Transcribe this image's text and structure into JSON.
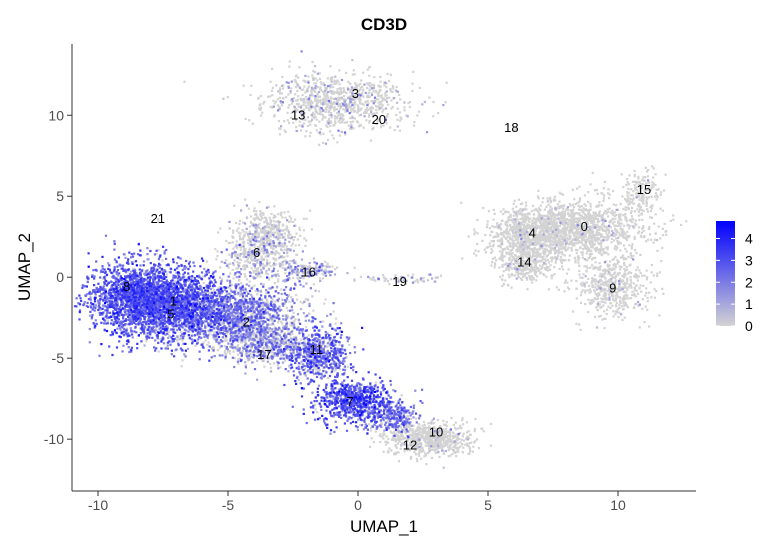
{
  "chart_data": {
    "type": "scatter",
    "title": "CD3D",
    "xlabel": "UMAP_1",
    "ylabel": "UMAP_2",
    "xlim": [
      -11,
      13
    ],
    "ylim": [
      -13.2,
      14.4
    ],
    "x_ticks": [
      -10,
      -5,
      0,
      5,
      10
    ],
    "y_ticks": [
      -10,
      -5,
      0,
      5,
      10
    ],
    "grid": false,
    "legend": {
      "placement": "right",
      "min": 0,
      "max": 4.8,
      "ticks": [
        0,
        1,
        2,
        3,
        4
      ],
      "color_low": "#d3d3d3",
      "color_high": "#0000ff"
    },
    "cluster_labels": [
      {
        "label": "0",
        "x": 8.7,
        "y": 3.1
      },
      {
        "label": "1",
        "x": -7.1,
        "y": -1.5
      },
      {
        "label": "2",
        "x": -4.3,
        "y": -2.8
      },
      {
        "label": "3",
        "x": -0.1,
        "y": 11.3
      },
      {
        "label": "4",
        "x": 6.7,
        "y": 2.7
      },
      {
        "label": "5",
        "x": -7.2,
        "y": -2.3
      },
      {
        "label": "6",
        "x": -3.9,
        "y": 1.5
      },
      {
        "label": "7",
        "x": -0.3,
        "y": -7.7
      },
      {
        "label": "8",
        "x": -8.9,
        "y": -0.6
      },
      {
        "label": "9",
        "x": 9.8,
        "y": -0.7
      },
      {
        "label": "10",
        "x": 3.0,
        "y": -9.6
      },
      {
        "label": "11",
        "x": -1.6,
        "y": -4.5
      },
      {
        "label": "12",
        "x": 2.0,
        "y": -10.4
      },
      {
        "label": "13",
        "x": -2.3,
        "y": 10.0
      },
      {
        "label": "14",
        "x": 6.4,
        "y": 0.9
      },
      {
        "label": "15",
        "x": 11.0,
        "y": 5.4
      },
      {
        "label": "16",
        "x": -1.9,
        "y": 0.3
      },
      {
        "label": "17",
        "x": -3.6,
        "y": -4.8
      },
      {
        "label": "18",
        "x": 5.9,
        "y": 9.2
      },
      {
        "label": "19",
        "x": 1.6,
        "y": -0.3
      },
      {
        "label": "20",
        "x": 0.8,
        "y": 9.7
      },
      {
        "label": "21",
        "x": -7.7,
        "y": 3.6
      }
    ],
    "clusters": [
      {
        "id": "3_13_20",
        "cx": -0.8,
        "cy": 10.8,
        "sx": 1.4,
        "sy": 0.9,
        "n": 900,
        "expr": 0.6
      },
      {
        "id": "0",
        "cx": 8.4,
        "cy": 3.0,
        "sx": 1.3,
        "sy": 0.9,
        "n": 1300,
        "expr": 0.12
      },
      {
        "id": "4",
        "cx": 6.6,
        "cy": 2.5,
        "sx": 0.8,
        "sy": 0.9,
        "n": 700,
        "expr": 0.15
      },
      {
        "id": "14",
        "cx": 6.4,
        "cy": 0.8,
        "sx": 0.5,
        "sy": 0.5,
        "n": 250,
        "expr": 0.15
      },
      {
        "id": "9",
        "cx": 9.8,
        "cy": -0.6,
        "sx": 0.7,
        "sy": 0.9,
        "n": 500,
        "expr": 0.1
      },
      {
        "id": "15",
        "cx": 10.9,
        "cy": 5.2,
        "sx": 0.4,
        "sy": 0.9,
        "n": 150,
        "expr": 0.05
      },
      {
        "id": "8",
        "cx": -8.6,
        "cy": -1.2,
        "sx": 0.9,
        "sy": 1.1,
        "n": 1500,
        "expr": 2.7
      },
      {
        "id": "1_5",
        "cx": -7.0,
        "cy": -1.8,
        "sx": 1.1,
        "sy": 1.1,
        "n": 1700,
        "expr": 2.6
      },
      {
        "id": "2",
        "cx": -4.6,
        "cy": -2.5,
        "sx": 1.2,
        "sy": 1.0,
        "n": 1500,
        "expr": 1.8
      },
      {
        "id": "6",
        "cx": -3.8,
        "cy": 1.6,
        "sx": 0.7,
        "sy": 1.1,
        "n": 500,
        "expr": 1.0
      },
      {
        "id": "6b",
        "cx": -3.2,
        "cy": 3.0,
        "sx": 0.5,
        "sy": 0.6,
        "n": 200,
        "expr": 0.6
      },
      {
        "id": "17",
        "cx": -3.5,
        "cy": -4.2,
        "sx": 0.8,
        "sy": 0.6,
        "n": 500,
        "expr": 1.5
      },
      {
        "id": "11",
        "cx": -1.5,
        "cy": -4.8,
        "sx": 0.6,
        "sy": 0.8,
        "n": 600,
        "expr": 2.4
      },
      {
        "id": "7",
        "cx": -0.2,
        "cy": -7.6,
        "sx": 0.7,
        "sy": 0.7,
        "n": 700,
        "expr": 2.8
      },
      {
        "id": "7b",
        "cx": 1.3,
        "cy": -8.6,
        "sx": 0.5,
        "sy": 0.5,
        "n": 300,
        "expr": 2.2
      },
      {
        "id": "10_12",
        "cx": 2.7,
        "cy": -10.0,
        "sx": 0.8,
        "sy": 0.5,
        "n": 700,
        "expr": 0.15
      },
      {
        "id": "16",
        "cx": -2.0,
        "cy": 0.4,
        "sx": 0.6,
        "sy": 0.3,
        "n": 180,
        "expr": 1.3
      },
      {
        "id": "19",
        "cx": 1.7,
        "cy": -0.1,
        "sx": 0.7,
        "sy": 0.15,
        "n": 60,
        "expr": 1.0
      },
      {
        "id": "18",
        "cx": 6.1,
        "cy": 9.1,
        "sx": 0.05,
        "sy": 0.05,
        "n": 5,
        "expr": 0.1
      },
      {
        "id": "21",
        "cx": -7.7,
        "cy": 3.6,
        "sx": 0.05,
        "sy": 0.05,
        "n": 2,
        "expr": 0.1
      }
    ]
  }
}
